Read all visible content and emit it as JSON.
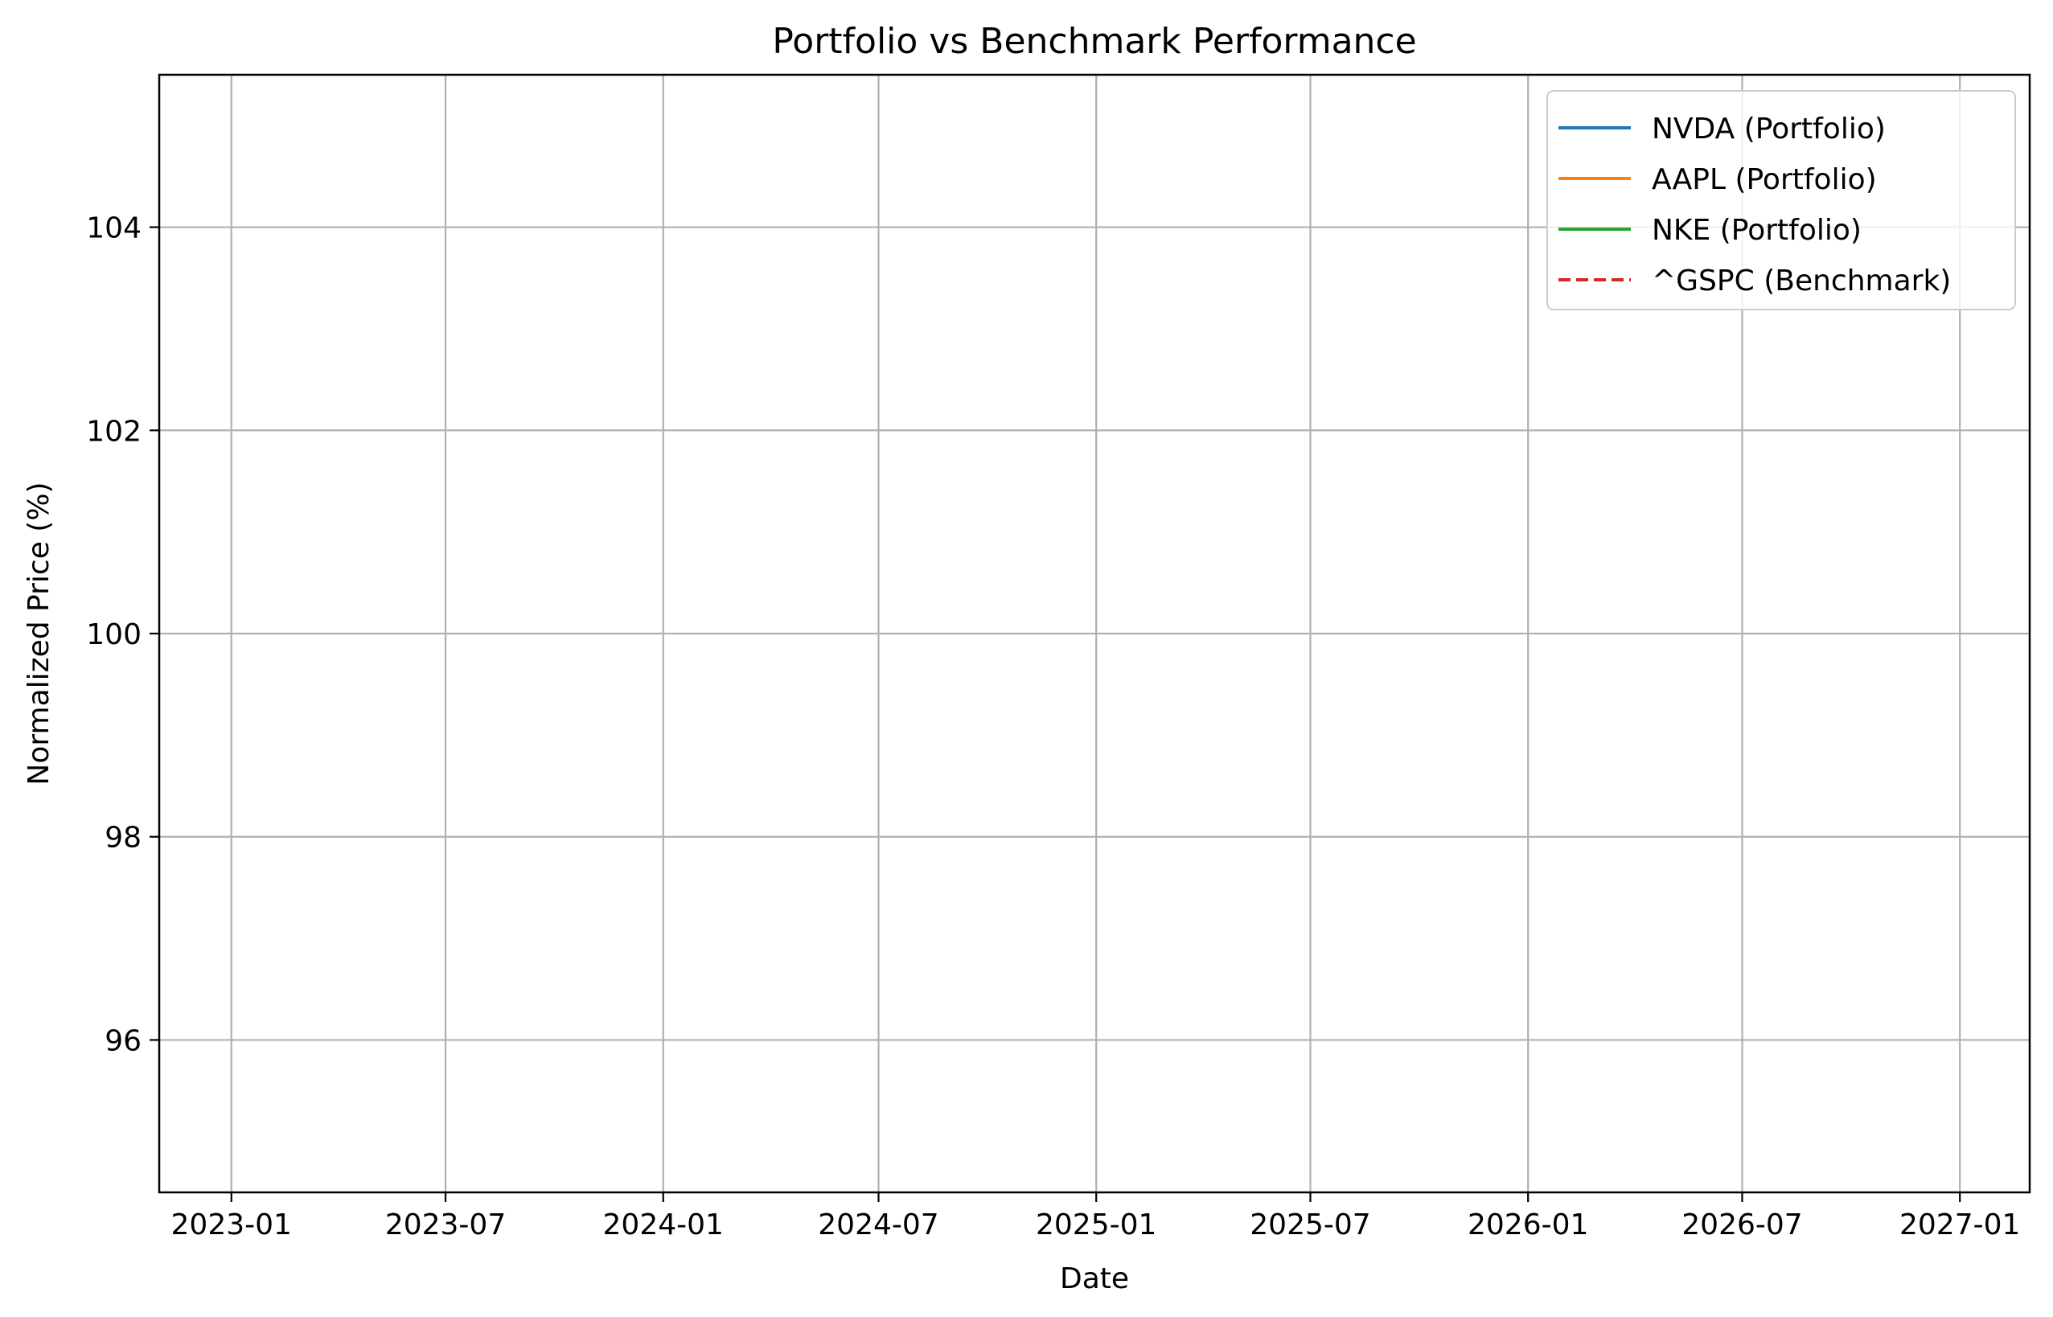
{
  "chart_data": {
    "type": "line",
    "title": "Portfolio vs Benchmark Performance",
    "xlabel": "Date",
    "ylabel": "Normalized Price (%)",
    "x_axis_type": "date",
    "xlim": [
      "2022-11-01",
      "2027-03-01"
    ],
    "ylim": [
      94.5,
      105.5
    ],
    "x_ticks": [
      "2023-01",
      "2023-07",
      "2024-01",
      "2024-07",
      "2025-01",
      "2025-07",
      "2026-01",
      "2026-07",
      "2027-01"
    ],
    "y_ticks": [
      96,
      98,
      100,
      102,
      104
    ],
    "grid": true,
    "legend_position": "top-right",
    "series": [
      {
        "name": "NVDA (Portfolio)",
        "color": "#1f77b4",
        "linestyle": "solid",
        "x": [],
        "y": []
      },
      {
        "name": "AAPL (Portfolio)",
        "color": "#ff7f0e",
        "linestyle": "solid",
        "x": [],
        "y": []
      },
      {
        "name": "NKE (Portfolio)",
        "color": "#2ca02c",
        "linestyle": "solid",
        "x": [],
        "y": []
      },
      {
        "name": "^GSPC (Benchmark)",
        "color": "#d62728",
        "linestyle": "dashed",
        "x": [],
        "y": []
      }
    ]
  }
}
